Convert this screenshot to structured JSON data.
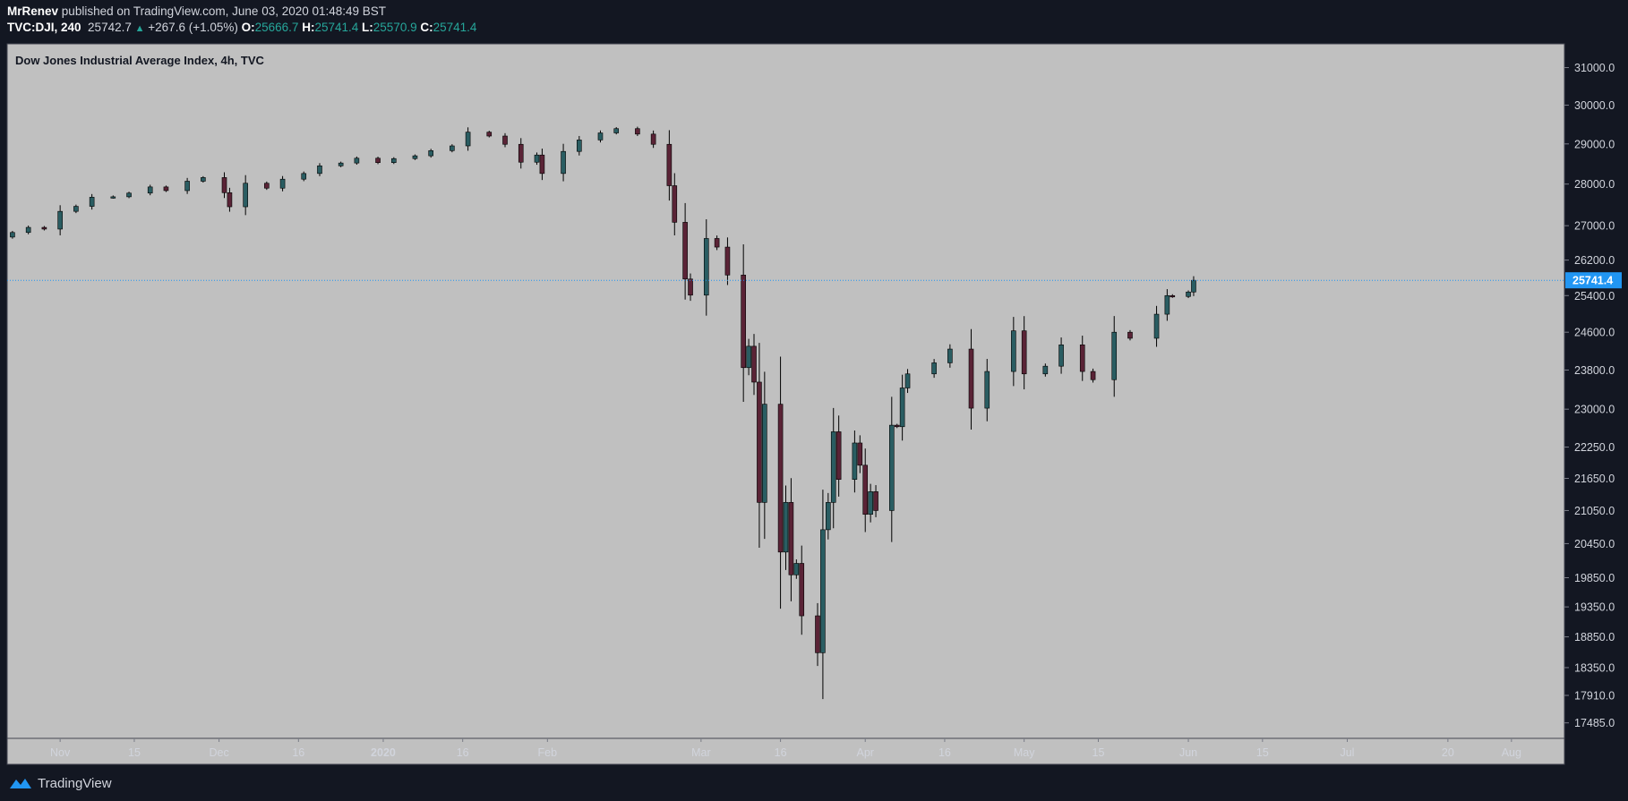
{
  "header": {
    "author": "MrRenev",
    "published_text": "published on TradingView.com, June 03, 2020 01:48:49 BST",
    "symbol": "TVC:DJI, 240",
    "last": "25742.7",
    "change": "+267.6 (+1.05%)",
    "open_label": "O:",
    "open": "25666.7",
    "high_label": "H:",
    "high": "25741.4",
    "low_label": "L:",
    "low": "25570.9",
    "close_label": "C:",
    "close": "25741.4"
  },
  "footer": {
    "brand": "TradingView"
  },
  "colors": {
    "background": "#131722",
    "plot_bg": "#c0c0c0",
    "up": "#2a5d62",
    "down": "#5a2336",
    "wick": "#000000",
    "price_line": "#2196f3",
    "accent_green": "#26a69a"
  },
  "chart_data": {
    "type": "candlestick",
    "title": "Dow Jones Industrial Average Index, 4h, TVC",
    "x_range": [
      "2019-10-22",
      "2020-08-11"
    ],
    "x_ticks": [
      {
        "date": "2019-11-01",
        "label": "Nov",
        "bold": false
      },
      {
        "date": "2019-11-15",
        "label": "15",
        "bold": false
      },
      {
        "date": "2019-12-01",
        "label": "Dec",
        "bold": false
      },
      {
        "date": "2019-12-16",
        "label": "16",
        "bold": false
      },
      {
        "date": "2020-01-01",
        "label": "2020",
        "bold": true
      },
      {
        "date": "2020-01-16",
        "label": "16",
        "bold": false
      },
      {
        "date": "2020-02-01",
        "label": "Feb",
        "bold": false
      },
      {
        "date": "2020-03-01",
        "label": "Mar",
        "bold": false
      },
      {
        "date": "2020-03-16",
        "label": "16",
        "bold": false
      },
      {
        "date": "2020-04-01",
        "label": "Apr",
        "bold": false
      },
      {
        "date": "2020-04-16",
        "label": "16",
        "bold": false
      },
      {
        "date": "2020-05-01",
        "label": "May",
        "bold": false
      },
      {
        "date": "2020-05-15",
        "label": "15",
        "bold": false
      },
      {
        "date": "2020-06-01",
        "label": "Jun",
        "bold": false
      },
      {
        "date": "2020-06-15",
        "label": "15",
        "bold": false
      },
      {
        "date": "2020-07-01",
        "label": "Jul",
        "bold": false
      },
      {
        "date": "2020-07-20",
        "label": "20",
        "bold": false
      },
      {
        "date": "2020-08-01",
        "label": "Aug",
        "bold": false
      }
    ],
    "y_scale": "log",
    "y_range": [
      17250,
      31650
    ],
    "y_ticks": [
      "31000.0",
      "30000.0",
      "29000.0",
      "28000.0",
      "27000.0",
      "26200.0",
      "25400.0",
      "24600.0",
      "23800.0",
      "23000.0",
      "22250.0",
      "21650.0",
      "21050.0",
      "20450.0",
      "19850.0",
      "19350.0",
      "18850.0",
      "18350.0",
      "17910.0",
      "17485.0"
    ],
    "last_price": 25741.4,
    "last_price_label": "25741.4",
    "series": [
      {
        "date": "2019-10-23",
        "close": 26840
      },
      {
        "date": "2019-10-26",
        "close": 26960
      },
      {
        "date": "2019-10-29",
        "close": 26920
      },
      {
        "date": "2019-11-01",
        "close": 27340
      },
      {
        "date": "2019-11-04",
        "close": 27460
      },
      {
        "date": "2019-11-07",
        "close": 27680
      },
      {
        "date": "2019-11-11",
        "close": 27690
      },
      {
        "date": "2019-11-14",
        "close": 27780
      },
      {
        "date": "2019-11-18",
        "close": 27930
      },
      {
        "date": "2019-11-21",
        "close": 27840
      },
      {
        "date": "2019-11-25",
        "close": 28070
      },
      {
        "date": "2019-11-28",
        "close": 28160
      },
      {
        "date": "2019-12-02",
        "close": 27790
      },
      {
        "date": "2019-12-03",
        "close": 27450
      },
      {
        "date": "2019-12-06",
        "close": 28020
      },
      {
        "date": "2019-12-10",
        "close": 27900
      },
      {
        "date": "2019-12-13",
        "close": 28120
      },
      {
        "date": "2019-12-17",
        "close": 28260
      },
      {
        "date": "2019-12-20",
        "close": 28450
      },
      {
        "date": "2019-12-24",
        "close": 28520
      },
      {
        "date": "2019-12-27",
        "close": 28640
      },
      {
        "date": "2019-12-31",
        "close": 28530
      },
      {
        "date": "2020-01-03",
        "close": 28630
      },
      {
        "date": "2020-01-07",
        "close": 28700
      },
      {
        "date": "2020-01-10",
        "close": 28830
      },
      {
        "date": "2020-01-14",
        "close": 28950
      },
      {
        "date": "2020-01-17",
        "close": 29300
      },
      {
        "date": "2020-01-21",
        "close": 29200
      },
      {
        "date": "2020-01-24",
        "close": 28990
      },
      {
        "date": "2020-01-27",
        "close": 28540
      },
      {
        "date": "2020-01-30",
        "close": 28720
      },
      {
        "date": "2020-01-31",
        "close": 28260
      },
      {
        "date": "2020-02-04",
        "close": 28810
      },
      {
        "date": "2020-02-07",
        "close": 29100
      },
      {
        "date": "2020-02-11",
        "close": 29280
      },
      {
        "date": "2020-02-14",
        "close": 29390
      },
      {
        "date": "2020-02-18",
        "close": 29250
      },
      {
        "date": "2020-02-21",
        "close": 28990
      },
      {
        "date": "2020-02-24",
        "close": 27960
      },
      {
        "date": "2020-02-25",
        "close": 27080
      },
      {
        "date": "2020-02-27",
        "close": 25770
      },
      {
        "date": "2020-02-28",
        "close": 25410
      },
      {
        "date": "2020-03-02",
        "close": 26700
      },
      {
        "date": "2020-03-04",
        "close": 26500
      },
      {
        "date": "2020-03-06",
        "close": 25860
      },
      {
        "date": "2020-03-09",
        "close": 23850
      },
      {
        "date": "2020-03-10",
        "close": 24300
      },
      {
        "date": "2020-03-11",
        "close": 23550
      },
      {
        "date": "2020-03-12",
        "close": 21200
      },
      {
        "date": "2020-03-13",
        "close": 23100
      },
      {
        "date": "2020-03-16",
        "close": 20300
      },
      {
        "date": "2020-03-17",
        "close": 21200
      },
      {
        "date": "2020-03-18",
        "close": 19900
      },
      {
        "date": "2020-03-19",
        "close": 20100
      },
      {
        "date": "2020-03-20",
        "close": 19200
      },
      {
        "date": "2020-03-23",
        "close": 18590
      },
      {
        "date": "2020-03-24",
        "close": 20700
      },
      {
        "date": "2020-03-25",
        "close": 21200
      },
      {
        "date": "2020-03-26",
        "close": 22550
      },
      {
        "date": "2020-03-27",
        "close": 21630
      },
      {
        "date": "2020-03-30",
        "close": 22330
      },
      {
        "date": "2020-03-31",
        "close": 21900
      },
      {
        "date": "2020-04-01",
        "close": 20980
      },
      {
        "date": "2020-04-02",
        "close": 21400
      },
      {
        "date": "2020-04-03",
        "close": 21050
      },
      {
        "date": "2020-04-06",
        "close": 22680
      },
      {
        "date": "2020-04-07",
        "close": 22650
      },
      {
        "date": "2020-04-08",
        "close": 23430
      },
      {
        "date": "2020-04-09",
        "close": 23720
      },
      {
        "date": "2020-04-14",
        "close": 23950
      },
      {
        "date": "2020-04-17",
        "close": 24240
      },
      {
        "date": "2020-04-21",
        "close": 23020
      },
      {
        "date": "2020-04-24",
        "close": 23770
      },
      {
        "date": "2020-04-29",
        "close": 24630
      },
      {
        "date": "2020-05-01",
        "close": 23720
      },
      {
        "date": "2020-05-05",
        "close": 23880
      },
      {
        "date": "2020-05-08",
        "close": 24330
      },
      {
        "date": "2020-05-12",
        "close": 23770
      },
      {
        "date": "2020-05-14",
        "close": 23600
      },
      {
        "date": "2020-05-18",
        "close": 24600
      },
      {
        "date": "2020-05-21",
        "close": 24470
      },
      {
        "date": "2020-05-26",
        "close": 24990
      },
      {
        "date": "2020-05-28",
        "close": 25400
      },
      {
        "date": "2020-05-29",
        "close": 25380
      },
      {
        "date": "2020-06-01",
        "close": 25480
      },
      {
        "date": "2020-06-02",
        "close": 25742
      }
    ]
  }
}
